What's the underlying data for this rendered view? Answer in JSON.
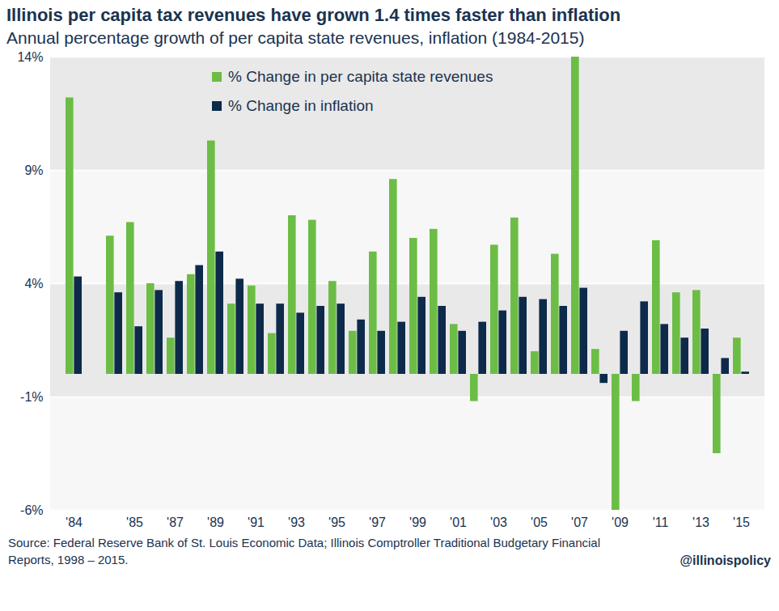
{
  "chart_data": {
    "type": "bar",
    "title": "Illinois per capita tax revenues have grown 1.4 times faster than inflation",
    "subtitle": "Annual percentage growth of per capita state revenues, inflation (1984-2015)",
    "source": "Source: Federal Reserve Bank of St. Louis Economic Data; Illinois Comptroller Traditional Budgetary Financial Reports, 1998 – 2015.",
    "credit": "@illinoispolicy",
    "categories": [
      "'84",
      null,
      null,
      "'85",
      null,
      "'87",
      null,
      "'89",
      null,
      "'91",
      null,
      "'93",
      null,
      "'95",
      null,
      "'97",
      null,
      "'99",
      null,
      "'01",
      null,
      "'03",
      null,
      "'05",
      null,
      "'07",
      null,
      "'09",
      null,
      "'11",
      null,
      "'13",
      null,
      "'15"
    ],
    "series": [
      {
        "name": "% Change in per capita state revenues",
        "color": "#6cbd45",
        "values": [
          12.2,
          null,
          6.1,
          6.7,
          4.0,
          1.6,
          4.4,
          10.3,
          3.1,
          3.9,
          1.8,
          7.0,
          6.8,
          4.1,
          1.9,
          5.4,
          8.6,
          6.0,
          6.4,
          2.2,
          -1.2,
          5.7,
          6.9,
          1.0,
          5.3,
          14.0,
          1.1,
          -6.0,
          -1.2,
          5.9,
          3.6,
          3.7,
          -3.5,
          1.6
        ]
      },
      {
        "name": "% Change in inflation",
        "color": "#0d2a4a",
        "values": [
          4.3,
          null,
          3.6,
          2.1,
          3.7,
          4.1,
          4.8,
          5.4,
          4.2,
          3.1,
          3.1,
          2.7,
          3.0,
          3.1,
          2.4,
          1.9,
          2.3,
          3.4,
          3.0,
          1.9,
          2.3,
          2.8,
          3.4,
          3.3,
          3.0,
          3.8,
          -0.4,
          1.9,
          3.2,
          2.2,
          1.6,
          2.0,
          0.7,
          0.1
        ]
      }
    ],
    "ylim": [
      -6,
      14
    ],
    "yticks": [
      {
        "value": -6,
        "label": "-6%"
      },
      {
        "value": -1,
        "label": "-1%"
      },
      {
        "value": 4,
        "label": "4%"
      },
      {
        "value": 9,
        "label": "9%"
      },
      {
        "value": 14,
        "label": "14%"
      }
    ],
    "grid": true,
    "legend": "top"
  }
}
